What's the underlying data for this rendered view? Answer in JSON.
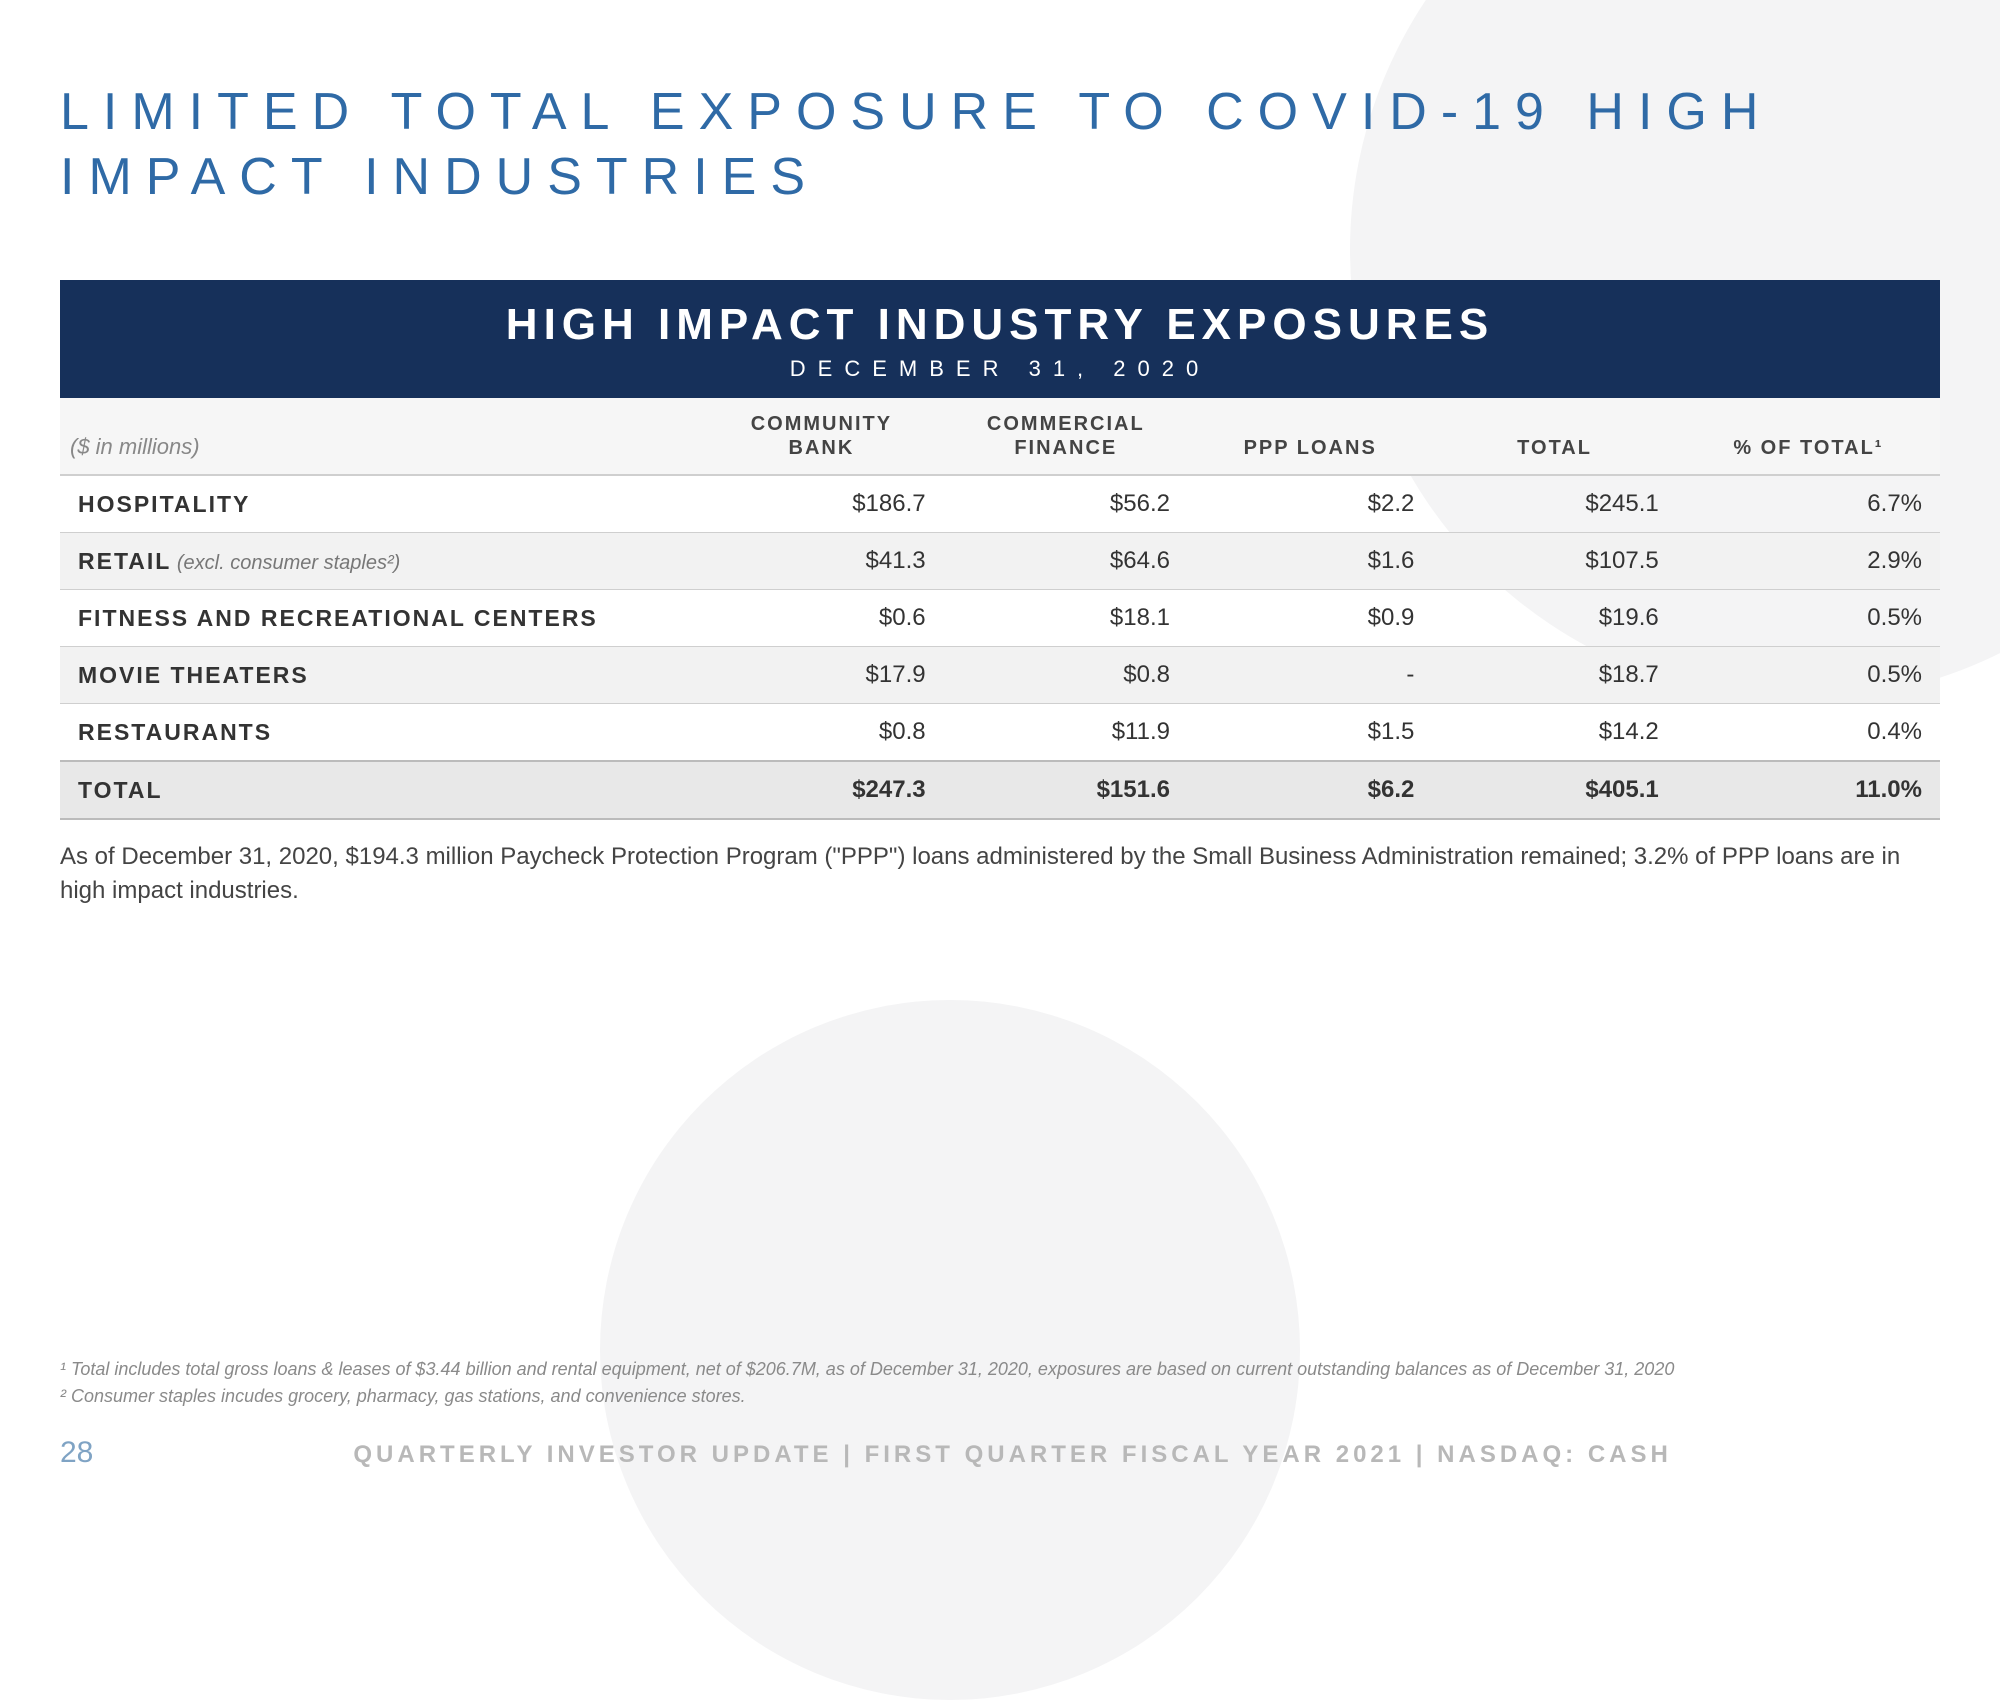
{
  "colors": {
    "title": "#2f6aa6",
    "banner_bg": "#16305a",
    "banner_fg": "#ffffff",
    "row_alt": "#f2f2f2",
    "row_total": "#e8e8e8",
    "border": "#cfcfcf",
    "footnote": "#8a8a8a",
    "footer_text": "#b8b8b8",
    "page_num": "#7fa3c4"
  },
  "title": "LIMITED TOTAL EXPOSURE TO COVID-19 HIGH IMPACT INDUSTRIES",
  "banner": {
    "title": "HIGH IMPACT INDUSTRY EXPOSURES",
    "subtitle": "DECEMBER 31, 2020"
  },
  "table": {
    "unit_label": "($ in millions)",
    "columns": [
      {
        "line1": "COMMUNITY",
        "line2": "BANK"
      },
      {
        "line1": "COMMERCIAL",
        "line2": "FINANCE"
      },
      {
        "line1": "",
        "line2": "PPP LOANS"
      },
      {
        "line1": "",
        "line2": "TOTAL"
      },
      {
        "line1": "",
        "line2": "% OF TOTAL¹"
      }
    ],
    "rows": [
      {
        "label": "HOSPITALITY",
        "note": "",
        "vals": [
          "$186.7",
          "$56.2",
          "$2.2",
          "$245.1",
          "6.7%"
        ],
        "alt": false
      },
      {
        "label": "RETAIL",
        "note": " (excl. consumer staples²)",
        "vals": [
          "$41.3",
          "$64.6",
          "$1.6",
          "$107.5",
          "2.9%"
        ],
        "alt": true
      },
      {
        "label": "FITNESS AND RECREATIONAL CENTERS",
        "note": "",
        "vals": [
          "$0.6",
          "$18.1",
          "$0.9",
          "$19.6",
          "0.5%"
        ],
        "alt": false
      },
      {
        "label": "MOVIE THEATERS",
        "note": "",
        "vals": [
          "$17.9",
          "$0.8",
          "-",
          "$18.7",
          "0.5%"
        ],
        "alt": true
      },
      {
        "label": "RESTAURANTS",
        "note": "",
        "vals": [
          "$0.8",
          "$11.9",
          "$1.5",
          "$14.2",
          "0.4%"
        ],
        "alt": false
      }
    ],
    "total": {
      "label": "TOTAL",
      "vals": [
        "$247.3",
        "$151.6",
        "$6.2",
        "$405.1",
        "11.0%"
      ]
    }
  },
  "body_note": "As of December 31, 2020, $194.3 million Paycheck Protection Program (\"PPP\") loans administered by the Small Business Administration remained; 3.2% of PPP loans are in high impact industries.",
  "footnotes": {
    "f1": "¹ Total includes total gross loans & leases of $3.44 billion and rental equipment, net of $206.7M, as of December 31, 2020, exposures are based on current outstanding balances as of December 31, 2020",
    "f2": "² Consumer staples incudes grocery, pharmacy, gas stations, and convenience stores."
  },
  "footer": {
    "page": "28",
    "text": "QUARTERLY INVESTOR UPDATE | FIRST QUARTER FISCAL YEAR 2021 | NASDAQ: CASH"
  }
}
